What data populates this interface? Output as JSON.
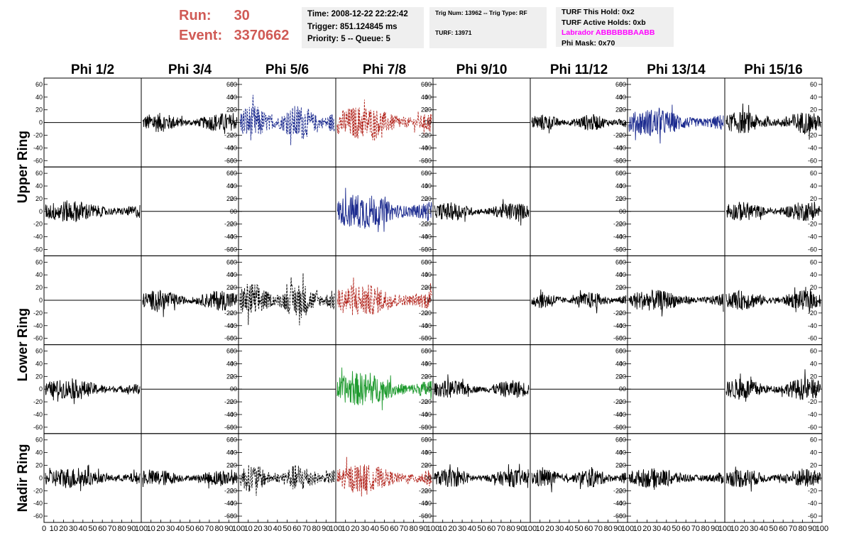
{
  "header": {
    "run_label": "Run:",
    "run_value": "30",
    "event_label": "Event:",
    "event_value": "3370662",
    "time": "Time: 2008-12-22 22:22:42",
    "trigger": "Trigger: 851.124845 ms",
    "priority": "Priority: 5 -- Queue: 5",
    "trig_num": "Trig Num: 13962 -- Trig Type: RF",
    "turf": "TURF: 13971",
    "turf_this_hold": "TURF This Hold: 0x2",
    "turf_active_holds": "TURF Active Holds: 0xb",
    "labrador": "Labrador ABBBBBBAABB",
    "phi_mask": "Phi Mask: 0x70"
  },
  "colors": {
    "black": "#000000",
    "blue": "#1c2b8f",
    "red": "#b3261e",
    "green": "#1e9a2e",
    "header_red": "#d05a55",
    "magenta": "#ff00ff"
  },
  "chart_data": {
    "type": "line",
    "columns": [
      "Phi 1/2",
      "Phi 3/4",
      "Phi 5/6",
      "Phi 7/8",
      "Phi 9/10",
      "Phi 11/12",
      "Phi 13/14",
      "Phi 15/16"
    ],
    "row_groups": [
      {
        "label": "Upper Ring",
        "rows": [
          0,
          1
        ]
      },
      {
        "label": "Lower Ring",
        "rows": [
          2,
          3
        ]
      },
      {
        "label": "Nadir Ring",
        "rows": [
          4
        ]
      }
    ],
    "ylim": [
      -70,
      70
    ],
    "yticks": [
      -60,
      -40,
      -20,
      0,
      20,
      40,
      60
    ],
    "xlim": [
      0,
      100
    ],
    "xticks": [
      0,
      10,
      20,
      30,
      40,
      50,
      60,
      70,
      80,
      90,
      100
    ],
    "x_tick_labels": [
      "0",
      "10",
      "20",
      "30",
      "40",
      "50",
      "60",
      "70",
      "80",
      "90",
      "100"
    ],
    "panels": [
      [
        {
          "style": "flat",
          "color": "#000000",
          "amp": 0,
          "dash": false
        },
        {
          "style": "noise",
          "color": "#000000",
          "amp": 14,
          "dash": false
        },
        {
          "style": "noise",
          "color": "#1c2b8f",
          "amp": 26,
          "dash": true
        },
        {
          "style": "noise",
          "color": "#b3261e",
          "amp": 24,
          "dash": true
        },
        {
          "style": "flat",
          "color": "#000000",
          "amp": 0,
          "dash": false
        },
        {
          "style": "noise",
          "color": "#000000",
          "amp": 12,
          "dash": false
        },
        {
          "style": "noise",
          "color": "#1c2b8f",
          "amp": 20,
          "dash": false
        },
        {
          "style": "noise",
          "color": "#000000",
          "amp": 16,
          "dash": false
        }
      ],
      [
        {
          "style": "noise",
          "color": "#000000",
          "amp": 16,
          "dash": false
        },
        {
          "style": "flat",
          "color": "#000000",
          "amp": 0,
          "dash": false
        },
        {
          "style": "flat",
          "color": "#000000",
          "amp": 0,
          "dash": false
        },
        {
          "style": "noise",
          "color": "#1c2b8f",
          "amp": 26,
          "dash": false
        },
        {
          "style": "noise",
          "color": "#000000",
          "amp": 13,
          "dash": false
        },
        {
          "style": "flat",
          "color": "#000000",
          "amp": 0,
          "dash": false
        },
        {
          "style": "flat",
          "color": "#000000",
          "amp": 0,
          "dash": false
        },
        {
          "style": "noise",
          "color": "#000000",
          "amp": 14,
          "dash": false
        }
      ],
      [
        {
          "style": "flat",
          "color": "#000000",
          "amp": 0,
          "dash": false
        },
        {
          "style": "noise",
          "color": "#000000",
          "amp": 15,
          "dash": false
        },
        {
          "style": "noise",
          "color": "#000000",
          "amp": 26,
          "dash": true
        },
        {
          "style": "noise",
          "color": "#b3261e",
          "amp": 24,
          "dash": true
        },
        {
          "style": "flat",
          "color": "#000000",
          "amp": 0,
          "dash": false
        },
        {
          "style": "noise",
          "color": "#000000",
          "amp": 12,
          "dash": false
        },
        {
          "style": "noise",
          "color": "#000000",
          "amp": 15,
          "dash": false
        },
        {
          "style": "noise",
          "color": "#000000",
          "amp": 14,
          "dash": false
        }
      ],
      [
        {
          "style": "noise",
          "color": "#000000",
          "amp": 14,
          "dash": false
        },
        {
          "style": "flat",
          "color": "#000000",
          "amp": 0,
          "dash": false
        },
        {
          "style": "flat",
          "color": "#000000",
          "amp": 0,
          "dash": false
        },
        {
          "style": "noise",
          "color": "#1e9a2e",
          "amp": 24,
          "dash": false
        },
        {
          "style": "noise",
          "color": "#000000",
          "amp": 13,
          "dash": false
        },
        {
          "style": "flat",
          "color": "#000000",
          "amp": 0,
          "dash": false
        },
        {
          "style": "flat",
          "color": "#000000",
          "amp": 0,
          "dash": false
        },
        {
          "style": "noise",
          "color": "#000000",
          "amp": 16,
          "dash": false
        }
      ],
      [
        {
          "style": "noise",
          "color": "#000000",
          "amp": 15,
          "dash": false
        },
        {
          "style": "noise",
          "color": "#000000",
          "amp": 12,
          "dash": false
        },
        {
          "style": "noise",
          "color": "#000000",
          "amp": 20,
          "dash": true
        },
        {
          "style": "noise",
          "color": "#b3261e",
          "amp": 20,
          "dash": true
        },
        {
          "style": "noise",
          "color": "#000000",
          "amp": 13,
          "dash": false
        },
        {
          "style": "noise",
          "color": "#000000",
          "amp": 14,
          "dash": false
        },
        {
          "style": "noise",
          "color": "#000000",
          "amp": 14,
          "dash": false
        },
        {
          "style": "noise",
          "color": "#000000",
          "amp": 14,
          "dash": false
        }
      ]
    ]
  }
}
